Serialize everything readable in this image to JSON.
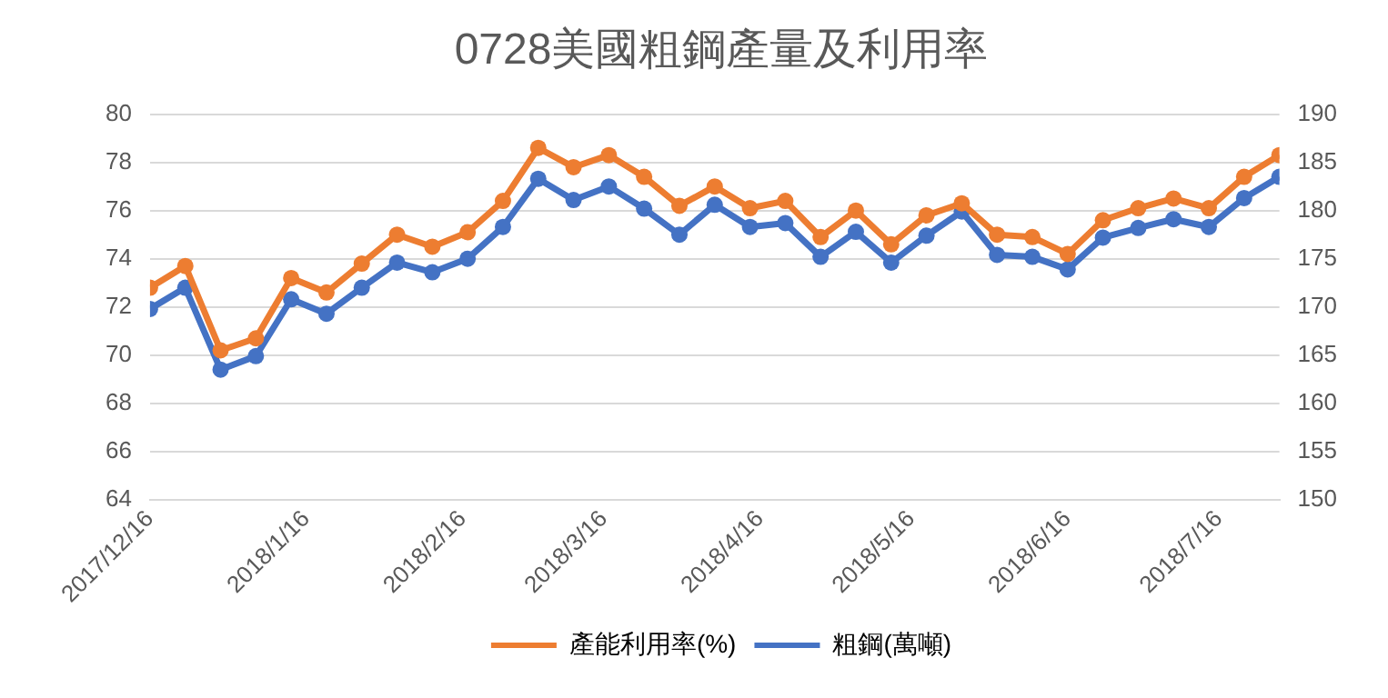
{
  "chart_data": {
    "type": "line",
    "title": "0728美國粗鋼產量及利用率",
    "x": [
      "2017-12-16",
      "2017-12-23",
      "2017-12-30",
      "2018-01-06",
      "2018-01-13",
      "2018-01-20",
      "2018-01-27",
      "2018-02-03",
      "2018-02-10",
      "2018-02-17",
      "2018-02-24",
      "2018-03-03",
      "2018-03-10",
      "2018-03-17",
      "2018-03-24",
      "2018-03-31",
      "2018-04-07",
      "2018-04-14",
      "2018-04-21",
      "2018-04-28",
      "2018-05-05",
      "2018-05-12",
      "2018-05-19",
      "2018-05-26",
      "2018-06-02",
      "2018-06-09",
      "2018-06-16",
      "2018-06-23",
      "2018-06-30",
      "2018-07-07",
      "2018-07-14",
      "2018-07-21",
      "2018-07-28"
    ],
    "series": [
      {
        "name": "產能利用率(%)",
        "color": "#ed7d31",
        "values": [
          72.8,
          73.7,
          70.2,
          70.7,
          73.2,
          72.6,
          73.8,
          75.0,
          74.5,
          75.1,
          76.4,
          78.6,
          77.8,
          78.3,
          77.4,
          76.2,
          77.0,
          76.1,
          76.4,
          74.9,
          76.0,
          74.6,
          75.8,
          76.3,
          75.0,
          74.9,
          74.2,
          75.6,
          76.1,
          76.5,
          76.1,
          77.4,
          78.3
        ]
      },
      {
        "name": "粗鋼(萬噸)",
        "color": "#4472c4",
        "axis": "y2",
        "values": [
          169.8,
          172.0,
          163.5,
          164.9,
          170.8,
          169.3,
          172.0,
          174.6,
          173.6,
          175.0,
          178.3,
          183.3,
          181.1,
          182.5,
          180.2,
          177.5,
          180.6,
          178.3,
          178.7,
          175.2,
          177.8,
          174.6,
          177.4,
          179.9,
          175.4,
          175.2,
          173.9,
          177.2,
          178.2,
          179.1,
          178.3,
          181.3,
          183.5
        ]
      }
    ],
    "xlim": [
      "2017-12-16",
      "2018-07-28"
    ],
    "xticks": [
      {
        "value": "2017-12-16",
        "label": "2017/12/16"
      },
      {
        "value": "2018-01-16",
        "label": "2018/1/16"
      },
      {
        "value": "2018-02-16",
        "label": "2018/2/16"
      },
      {
        "value": "2018-03-16",
        "label": "2018/3/16"
      },
      {
        "value": "2018-04-16",
        "label": "2018/4/16"
      },
      {
        "value": "2018-05-16",
        "label": "2018/5/16"
      },
      {
        "value": "2018-06-16",
        "label": "2018/6/16"
      },
      {
        "value": "2018-07-16",
        "label": "2018/7/16"
      }
    ],
    "ylim": [
      64,
      80
    ],
    "yticks": [
      64,
      66,
      68,
      70,
      72,
      74,
      76,
      78,
      80
    ],
    "y2lim": [
      150,
      190
    ],
    "y2ticks": [
      150,
      155,
      160,
      165,
      170,
      175,
      180,
      185,
      190
    ],
    "grid": "y",
    "legend": "bottom",
    "marker": "circle",
    "line_style": "solid"
  }
}
